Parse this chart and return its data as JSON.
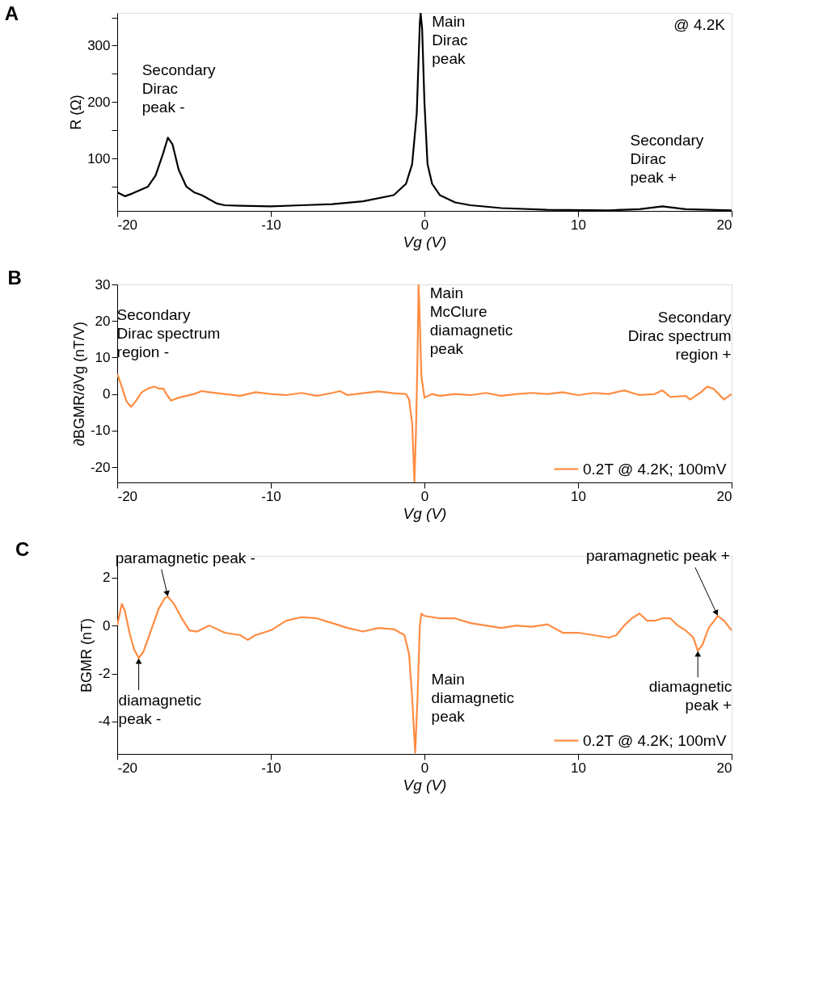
{
  "chart_data": [
    {
      "type": "line",
      "title": "A",
      "xlabel": "Vg (V)",
      "ylabel": "R (Ω)",
      "xlim": [
        -20,
        20
      ],
      "xticks": [
        -20,
        -10,
        0,
        10,
        20
      ],
      "ylim": [
        7,
        358
      ],
      "yticks": [
        {
          "value": 50,
          "label": null
        },
        100,
        {
          "value": 150,
          "label": null
        },
        200,
        {
          "value": 250,
          "label": null
        },
        300,
        {
          "value": 350,
          "label": null
        }
      ],
      "grid": false,
      "legend": false,
      "series": [
        {
          "color": "#000000",
          "x": [
            -20,
            -19.5,
            -19,
            -18,
            -17.5,
            -17,
            -16.7,
            -16.4,
            -16,
            -15.5,
            -15,
            -14.5,
            -13.5,
            -13,
            -12,
            -10,
            -8,
            -6,
            -4,
            -2,
            -1.2,
            -0.8,
            -0.5,
            -0.3,
            -0.25,
            -0.15,
            0,
            0.2,
            0.5,
            1,
            2,
            3,
            5,
            8,
            12,
            14,
            15.5,
            17,
            20
          ],
          "values": [
            40,
            33,
            38,
            50,
            70,
            110,
            137,
            125,
            80,
            50,
            40,
            35,
            20,
            17,
            16,
            15,
            17,
            19,
            24,
            35,
            55,
            90,
            180,
            340,
            358,
            330,
            200,
            90,
            55,
            35,
            22,
            17,
            12,
            9,
            8,
            10,
            15,
            10,
            8
          ]
        }
      ],
      "annotations": [
        "@ 4.2K",
        {
          "text": "Secondary\nDirac\npeak -",
          "x": -16.7,
          "y": 137
        },
        {
          "text": "Main\nDirac\npeak",
          "x": -0.25,
          "y": 358
        },
        {
          "text": "Secondary\nDirac\npeak +",
          "x": 15.5,
          "y": 15
        }
      ]
    },
    {
      "type": "line",
      "title": "B",
      "xlabel": "Vg (V)",
      "ylabel": "∂BGMR/∂Vg (nT/V)",
      "xlim": [
        -20,
        20
      ],
      "xticks": [
        -20,
        -10,
        0,
        10,
        20
      ],
      "ylim": [
        -24.2,
        30
      ],
      "yticks": [
        -20,
        -10,
        0,
        10,
        20,
        30
      ],
      "grid": false,
      "legend": "bottom right",
      "series": [
        {
          "name": "0.2T @ 4.2K; 100mV",
          "color": "#ff8c42",
          "x": [
            -20,
            -19.7,
            -19.4,
            -19.1,
            -18.8,
            -18.4,
            -18,
            -17.6,
            -17.3,
            -17,
            -16.8,
            -16.5,
            -16,
            -15,
            -14.5,
            -14,
            -13,
            -12,
            -11,
            -10,
            -9,
            -8,
            -7,
            -6,
            -5.5,
            -5,
            -4,
            -3,
            -2,
            -1.2,
            -1,
            -0.8,
            -0.65,
            -0.55,
            -0.45,
            -0.38,
            -0.3,
            -0.2,
            0,
            0.5,
            1,
            2,
            3,
            4,
            5,
            6,
            7,
            8,
            9,
            10,
            11,
            12,
            13,
            14,
            15,
            15.5,
            16,
            17,
            17.3,
            18,
            18.4,
            18.8,
            19.5,
            20
          ],
          "values": [
            5.5,
            2,
            -2,
            -3.5,
            -2,
            0.5,
            1.5,
            2,
            1.5,
            1.5,
            0,
            -1.8,
            -1,
            0,
            0.8,
            0.5,
            0,
            -0.5,
            0.5,
            0,
            -0.3,
            0.3,
            -0.5,
            0.3,
            0.8,
            -0.3,
            0.2,
            0.7,
            0.2,
            0,
            -1.5,
            -8,
            -24,
            -10,
            10,
            30,
            20,
            5,
            -1,
            0,
            -0.5,
            0,
            -0.3,
            0.3,
            -0.5,
            0,
            0.3,
            0,
            0.5,
            -0.3,
            0.3,
            0,
            1,
            -0.3,
            0,
            1,
            -0.8,
            -0.5,
            -1.5,
            0.5,
            2,
            1.5,
            -1.5,
            0
          ]
        }
      ],
      "annotations": [
        {
          "text": "Secondary\nDirac spectrum\nregion -",
          "x": -17.6,
          "y": 2
        },
        {
          "text": "Main\nMcClure\ndiamagnetic\npeak",
          "x": -0.38,
          "y": 30
        },
        {
          "text": "Secondary\nDirac spectrum\nregion +",
          "x": 18.4,
          "y": 2
        }
      ]
    },
    {
      "type": "line",
      "title": "C",
      "xlabel": "Vg (V)",
      "ylabel": "BGMR (nT)",
      "xlim": [
        -20,
        20
      ],
      "xticks": [
        -20,
        -10,
        0,
        10,
        20
      ],
      "ylim": [
        -5.35,
        2.9
      ],
      "yticks": [
        -4,
        -2,
        0,
        2
      ],
      "grid": false,
      "legend": "bottom right",
      "series": [
        {
          "name": "0.2T @ 4.2K; 100mV",
          "color": "#ff8c42",
          "x": [
            -20,
            -19.7,
            -19.5,
            -19.2,
            -18.9,
            -18.6,
            -18.3,
            -17.8,
            -17.3,
            -16.9,
            -16.7,
            -16.3,
            -15.8,
            -15.3,
            -14.8,
            -14,
            -13,
            -12,
            -11.5,
            -11,
            -10,
            -9.5,
            -9,
            -8,
            -7,
            -6,
            -5,
            -4,
            -3,
            -2,
            -1.3,
            -1,
            -0.8,
            -0.6,
            -0.45,
            -0.3,
            -0.2,
            0,
            1,
            2,
            3,
            4,
            5,
            6,
            7,
            8,
            9,
            10,
            11,
            12,
            12.5,
            13,
            13.5,
            14,
            14.5,
            15,
            15.5,
            16,
            16.5,
            17,
            17.5,
            17.8,
            18.1,
            18.5,
            19.1,
            19.5,
            20
          ],
          "values": [
            0,
            0.9,
            0.6,
            -0.3,
            -1.0,
            -1.35,
            -1.1,
            -0.2,
            0.7,
            1.15,
            1.2,
            0.9,
            0.3,
            -0.2,
            -0.25,
            0,
            -0.3,
            -0.4,
            -0.6,
            -0.4,
            -0.2,
            0,
            0.2,
            0.35,
            0.3,
            0.1,
            -0.1,
            -0.25,
            -0.1,
            -0.15,
            -0.4,
            -1.2,
            -3,
            -5.3,
            -3,
            0,
            0.5,
            0.4,
            0.3,
            0.3,
            0.1,
            0,
            -0.1,
            0,
            -0.05,
            0.05,
            -0.3,
            -0.3,
            -0.4,
            -0.5,
            -0.4,
            0,
            0.3,
            0.5,
            0.2,
            0.2,
            0.3,
            0.3,
            0,
            -0.2,
            -0.5,
            -1.05,
            -0.8,
            -0.1,
            0.4,
            0.2,
            -0.2
          ]
        }
      ],
      "annotations": [
        {
          "text": "paramagnetic peak -",
          "x": -16.7,
          "y": 1.2
        },
        {
          "text": "diamagnetic\npeak -",
          "x": -18.6,
          "y": -1.35
        },
        {
          "text": "Main\ndiamagnetic\npeak",
          "x": -0.6,
          "y": -5.3
        },
        {
          "text": "paramagnetic peak +",
          "x": 19.1,
          "y": 0.4
        },
        {
          "text": "diamagnetic\npeak +",
          "x": 17.8,
          "y": -1.05
        }
      ]
    }
  ]
}
